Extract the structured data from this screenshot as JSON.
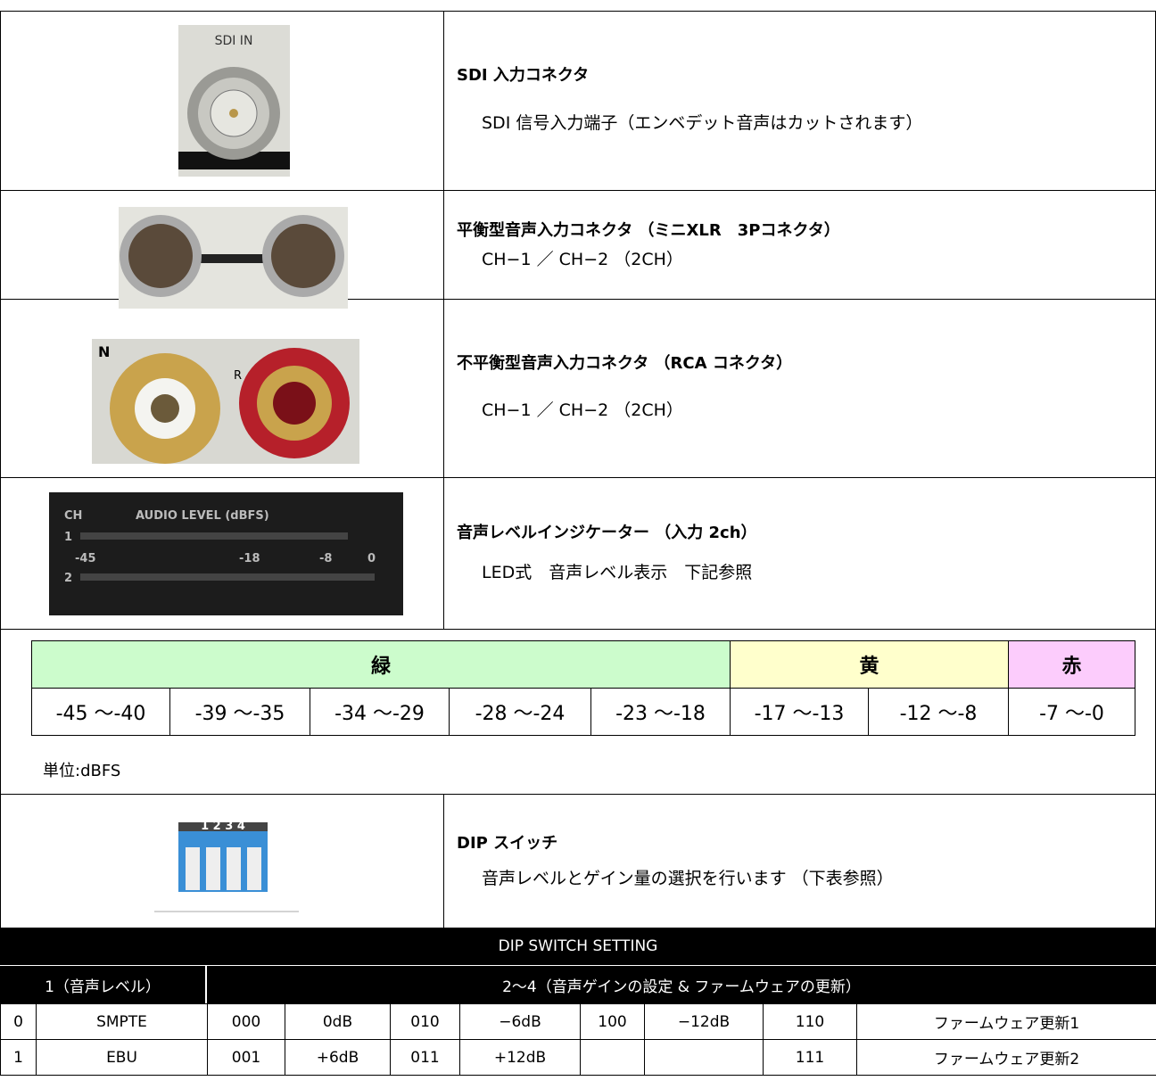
{
  "rows": [
    {
      "photo_labels": [
        "SDI IN"
      ],
      "title": "SDI 入力コネクタ",
      "description": "SDI 信号入力端子（エンベデット音声はカットされます）"
    },
    {
      "title": "平衡型音声入力コネクタ （ミニXLR　3Pコネクタ）",
      "description": "CH−1 ／ CH−2 （2CH）"
    },
    {
      "photo_labels": [
        "N",
        "R"
      ],
      "title": "不平衡型音声入力コネクタ （RCA コネクタ）",
      "description": "CH−1 ／ CH−2 （2CH）"
    },
    {
      "photo_labels": [
        "CH",
        "AUDIO LEVEL (dBFS)",
        "1",
        "2",
        "-45",
        "-18",
        "-8",
        "0"
      ],
      "title": "音声レベルインジケーター （入力 2ch）",
      "description": "LED式　音声レベル表示　下記参照"
    },
    {
      "photo_labels": [
        "1 2 3 4"
      ],
      "title": "DIP スイッチ",
      "description": "音声レベルとゲイン量の選択を行います （下表参照）"
    }
  ],
  "level_table": {
    "header": [
      "緑",
      "黄",
      "赤"
    ],
    "ranges": [
      "-45 〜-40",
      "-39 〜-35",
      "-34 〜-29",
      "-28 〜-24",
      "-23 〜-18",
      "-17 〜-13",
      "-12 〜-8",
      "-7 〜-0"
    ],
    "unit": "単位:dBFS"
  },
  "dip_table": {
    "title": "DIP SWITCH SETTING",
    "header": [
      "1（音声レベル）",
      "2〜4（音声ゲインの設定 & ファームウェアの更新）"
    ],
    "rows": [
      [
        "0",
        "SMPTE",
        "000",
        "0dB",
        "010",
        "−6dB",
        "100",
        "−12dB",
        "110",
        "ファームウェア更新1"
      ],
      [
        "1",
        "EBU",
        "001",
        "+6dB",
        "011",
        "+12dB",
        null,
        null,
        "111",
        "ファームウェア更新2"
      ]
    ]
  }
}
